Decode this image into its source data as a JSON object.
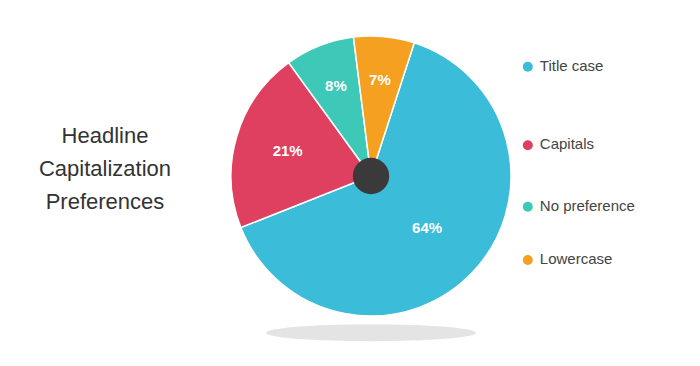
{
  "chart_data": {
    "type": "pie",
    "title": "Headline\nCapitalization\nPreferences",
    "categories": [
      "Title case",
      "Capitals",
      "No preference",
      "Lowercase"
    ],
    "values": [
      64,
      21,
      8,
      7
    ],
    "value_labels": [
      "64%",
      "21%",
      "8%",
      "7%"
    ],
    "colors": [
      "#3BBCD8",
      "#E04060",
      "#3EC8B8",
      "#F5A020"
    ],
    "data_labels": true,
    "legend": "right"
  }
}
